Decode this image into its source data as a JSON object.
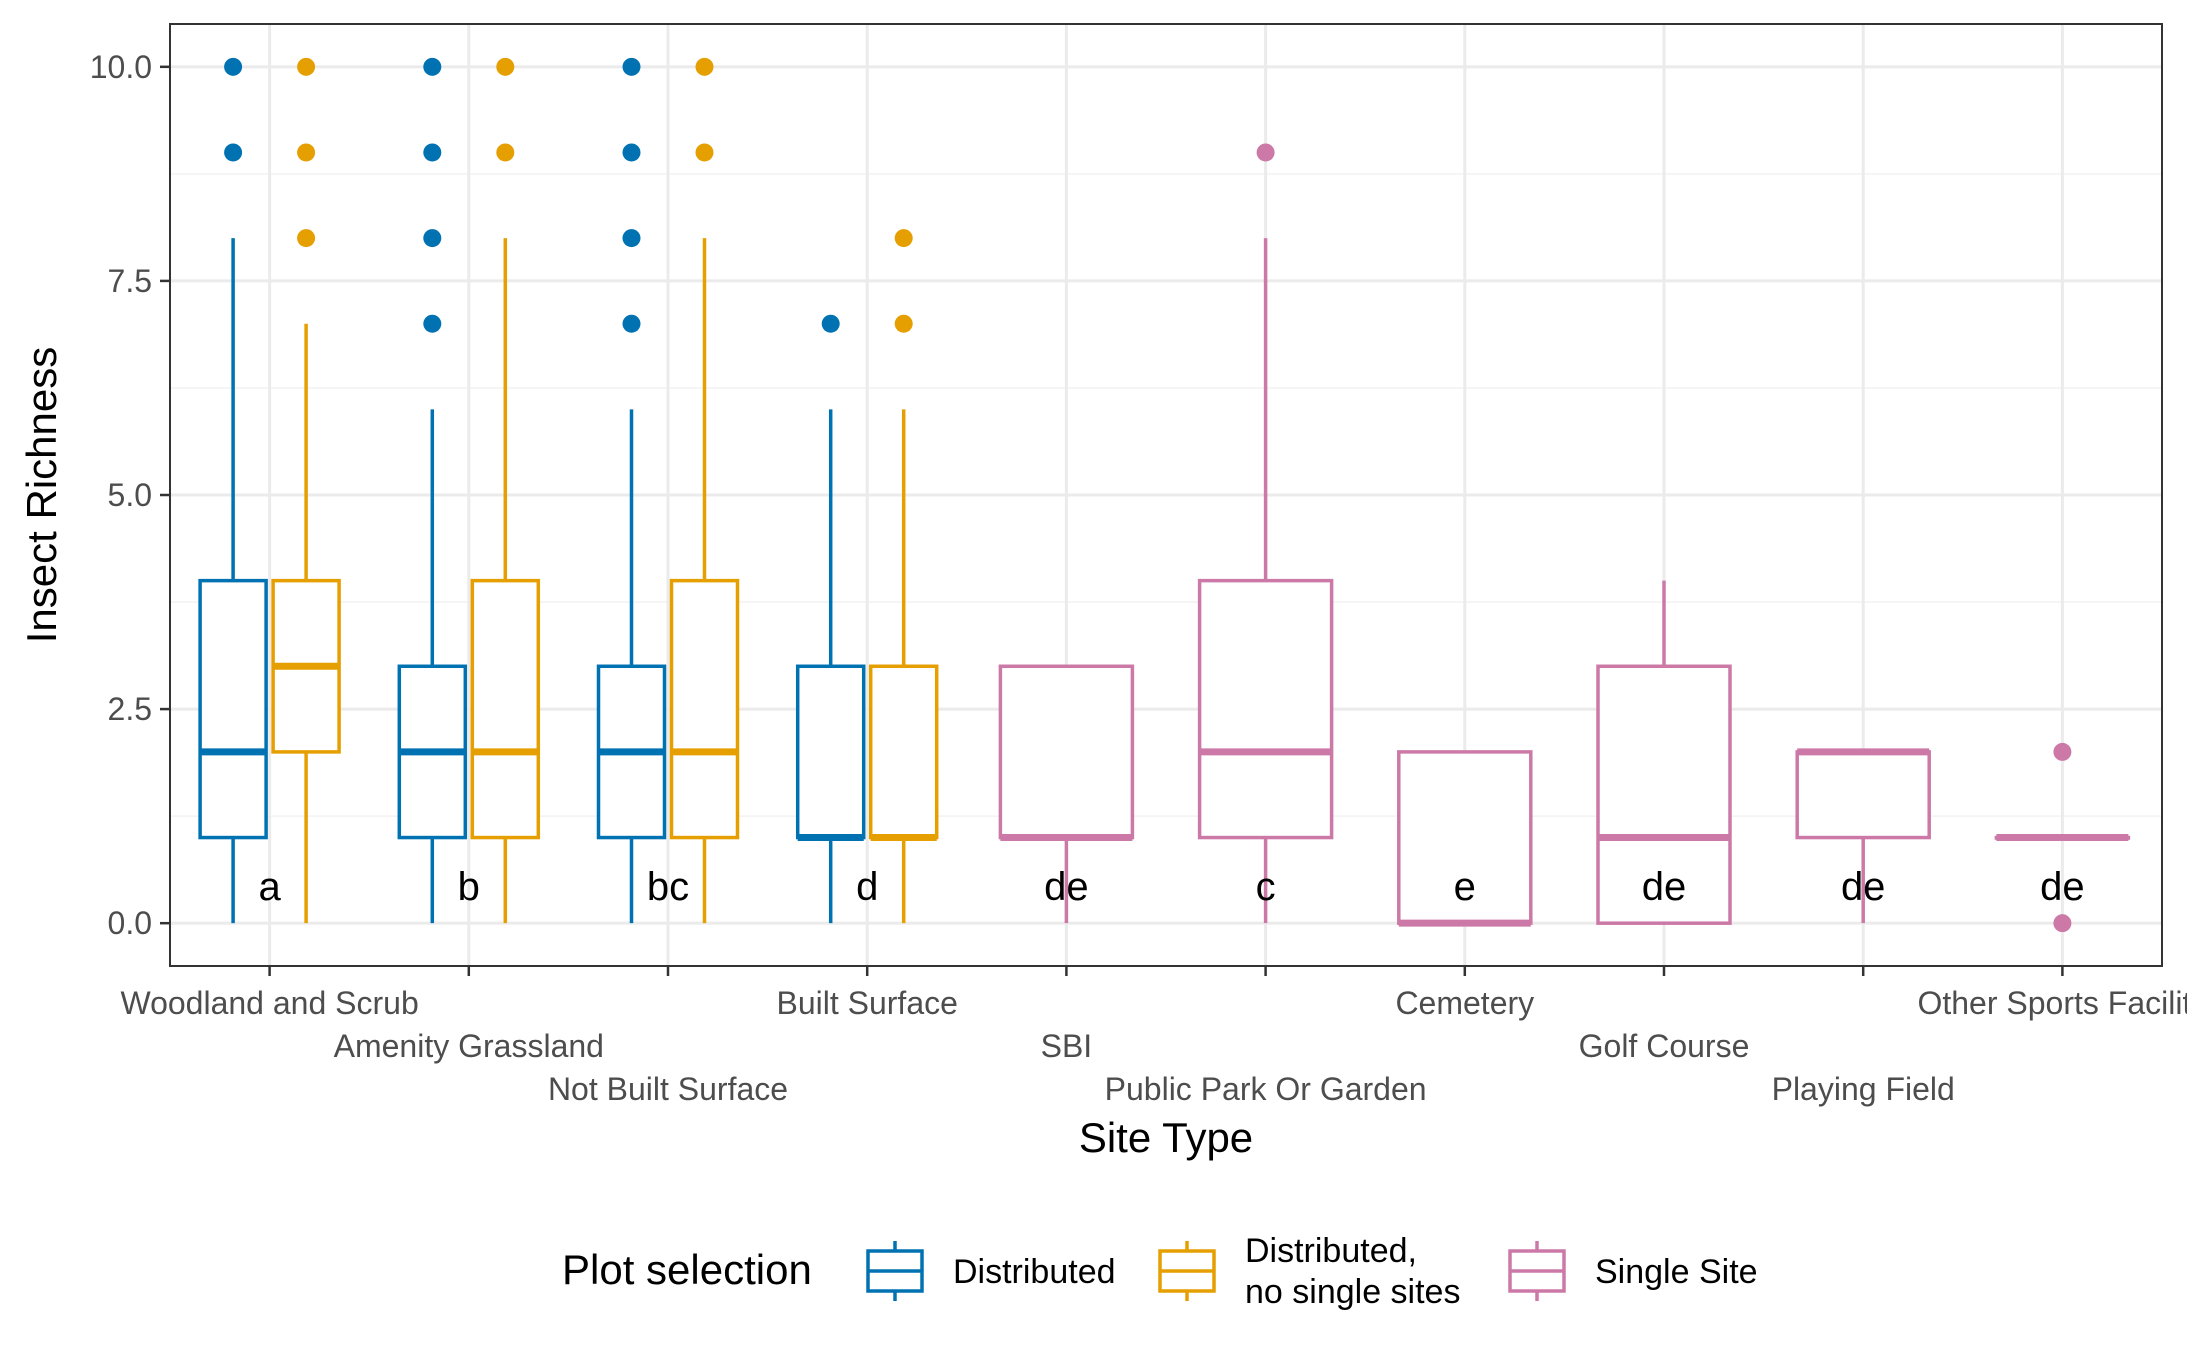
{
  "chart_data": {
    "type": "box",
    "xlabel": "Site Type",
    "ylabel": "Insect Richness",
    "ylim": [
      -0.5,
      10.5
    ],
    "yticks": [
      "0.0",
      "2.5",
      "5.0",
      "7.5",
      "10.0"
    ],
    "ytick_values": [
      0,
      2.5,
      5,
      7.5,
      10
    ],
    "grid": true,
    "categories": [
      "Woodland and Scrub",
      "Amenity Grassland",
      "Not Built Surface",
      "Built Surface",
      "SBI",
      "Public Park Or Garden",
      "Cemetery",
      "Golf Course",
      "Playing Field",
      "Other Sports Facility"
    ],
    "letters": [
      "a",
      "b",
      "bc",
      "d",
      "de",
      "c",
      "e",
      "de",
      "de",
      "de"
    ],
    "legend": {
      "title": "Plot selection",
      "position": "bottom",
      "entries": [
        {
          "label": "Distributed",
          "color": "#0072B2"
        },
        {
          "label": "Distributed,\nno single sites",
          "color": "#E69F00"
        },
        {
          "label": "Single Site",
          "color": "#CC79A7"
        }
      ]
    },
    "series": [
      {
        "name": "Distributed",
        "color": "#0072B2",
        "boxes": [
          {
            "category": "Woodland and Scrub",
            "min": 0,
            "q1": 1,
            "median": 2,
            "q3": 4,
            "max": 8,
            "outliers": [
              9,
              10
            ]
          },
          {
            "category": "Amenity Grassland",
            "min": 0,
            "q1": 1,
            "median": 2,
            "q3": 3,
            "max": 6,
            "outliers": [
              7,
              8,
              9,
              10
            ]
          },
          {
            "category": "Not Built Surface",
            "min": 0,
            "q1": 1,
            "median": 2,
            "q3": 3,
            "max": 6,
            "outliers": [
              7,
              8,
              9,
              10
            ]
          },
          {
            "category": "Built Surface",
            "min": 0,
            "q1": 1,
            "median": 1,
            "q3": 3,
            "max": 6,
            "outliers": [
              7
            ]
          }
        ]
      },
      {
        "name": "Distributed,\nno single sites",
        "color": "#E69F00",
        "boxes": [
          {
            "category": "Woodland and Scrub",
            "min": 0,
            "q1": 2,
            "median": 3,
            "q3": 4,
            "max": 7,
            "outliers": [
              8,
              9,
              10
            ]
          },
          {
            "category": "Amenity Grassland",
            "min": 0,
            "q1": 1,
            "median": 2,
            "q3": 4,
            "max": 8,
            "outliers": [
              9,
              10
            ]
          },
          {
            "category": "Not Built Surface",
            "min": 0,
            "q1": 1,
            "median": 2,
            "q3": 4,
            "max": 8,
            "outliers": [
              9,
              10
            ]
          },
          {
            "category": "Built Surface",
            "min": 0,
            "q1": 1,
            "median": 1,
            "q3": 3,
            "max": 6,
            "outliers": [
              7,
              8
            ]
          }
        ]
      },
      {
        "name": "Single Site",
        "color": "#CC79A7",
        "boxes": [
          {
            "category": "SBI",
            "min": 0,
            "q1": 1,
            "median": 1,
            "q3": 3,
            "max": 3,
            "outliers": []
          },
          {
            "category": "Public Park Or Garden",
            "min": 0,
            "q1": 1,
            "median": 2,
            "q3": 4,
            "max": 8,
            "outliers": [
              9
            ]
          },
          {
            "category": "Cemetery",
            "min": 0,
            "q1": 0,
            "median": 0,
            "q3": 2,
            "max": 2,
            "outliers": []
          },
          {
            "category": "Golf Course",
            "min": 0,
            "q1": 0,
            "median": 1,
            "q3": 3,
            "max": 4,
            "outliers": []
          },
          {
            "category": "Playing Field",
            "min": 0,
            "q1": 1,
            "median": 2,
            "q3": 2,
            "max": 2,
            "outliers": []
          },
          {
            "category": "Other Sports Facility",
            "min": 1,
            "q1": 1,
            "median": 1,
            "q3": 1,
            "max": 1,
            "outliers": [
              0,
              2
            ]
          }
        ]
      }
    ]
  }
}
